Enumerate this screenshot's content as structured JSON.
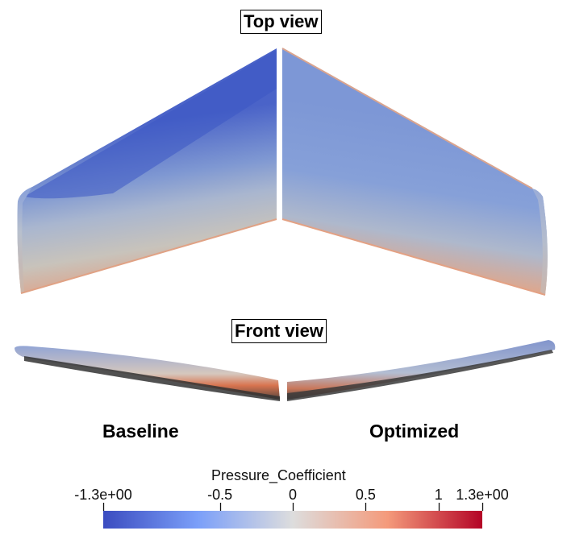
{
  "titles": {
    "top_view": "Top view",
    "front_view": "Front view"
  },
  "cases": {
    "baseline": "Baseline",
    "optimized": "Optimized"
  },
  "colorbar": {
    "title": "Pressure_Coefficient",
    "min_label": "-1.3e+00",
    "max_label": "1.3e+00",
    "min": -1.3,
    "max": 1.3,
    "ticks": [
      {
        "value": -0.5,
        "label": "-0.5"
      },
      {
        "value": 0,
        "label": "0"
      },
      {
        "value": 0.5,
        "label": "0.5"
      },
      {
        "value": 1,
        "label": "1"
      }
    ],
    "colors": {
      "low": "#3b4cc0",
      "mid": "#dddddd",
      "high": "#b40426"
    }
  }
}
